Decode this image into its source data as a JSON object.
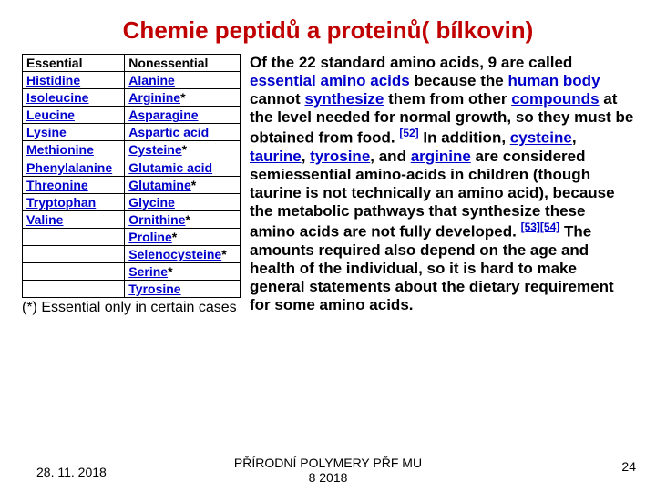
{
  "title": "Chemie peptidů a proteinů( bílkovin)",
  "table": {
    "headers": {
      "c1": "Essential",
      "c2": "Nonessential"
    },
    "rows": [
      {
        "c1": "Histidine",
        "c2": "Alanine",
        "c1_link": true,
        "c2_link": true,
        "c2_star": false
      },
      {
        "c1": "Isoleucine",
        "c2": "Arginine",
        "c1_link": true,
        "c2_link": true,
        "c2_star": true
      },
      {
        "c1": "Leucine",
        "c2": "Asparagine",
        "c1_link": true,
        "c2_link": true,
        "c2_star": false
      },
      {
        "c1": "Lysine",
        "c2": "Aspartic acid",
        "c1_link": true,
        "c2_link": true,
        "c2_star": false
      },
      {
        "c1": "Methionine",
        "c2": "Cysteine",
        "c1_link": true,
        "c2_link": true,
        "c2_star": true
      },
      {
        "c1": "Phenylalanine",
        "c2": "Glutamic acid",
        "c1_link": true,
        "c2_link": true,
        "c2_star": false
      },
      {
        "c1": "Threonine",
        "c2": "Glutamine",
        "c1_link": true,
        "c2_link": true,
        "c2_star": true
      },
      {
        "c1": "Tryptophan",
        "c2": "Glycine",
        "c1_link": true,
        "c2_link": true,
        "c2_star": false
      },
      {
        "c1": "Valine",
        "c2": "Ornithine",
        "c1_link": true,
        "c2_link": true,
        "c2_star": true
      },
      {
        "c1": "",
        "c2": "Proline",
        "c1_link": false,
        "c2_link": true,
        "c2_star": true
      },
      {
        "c1": "",
        "c2": "Selenocysteine",
        "c1_link": false,
        "c2_link": true,
        "c2_star": true
      },
      {
        "c1": "",
        "c2": "Serine",
        "c1_link": false,
        "c2_link": true,
        "c2_star": true
      },
      {
        "c1": "",
        "c2": "Tyrosine",
        "c1_link": false,
        "c2_link": true,
        "c2_star": false
      }
    ]
  },
  "footnote": "(*) Essential only in certain cases",
  "body": {
    "p1a": "Of the 22 standard amino acids, 9 are called ",
    "p1_link1": "essential amino acids",
    "p1b": " because the ",
    "p1_link2": "human body",
    "p1c": " cannot ",
    "p1_link3": "synthesize",
    "p1d": " them from other ",
    "p1_link4": "compounds",
    "p1e": " at the level needed for normal growth, so they must be obtained from food. ",
    "ref1": "[52]",
    "p1f": " In addition, ",
    "p1_link5": "cysteine",
    "comma1": ", ",
    "p1_link6": "taurine",
    "comma2": ", ",
    "p1_link7": "tyrosine",
    "comma3": ", and ",
    "p1_link8": "arginine",
    "p1g": " are considered semiessential amino-acids in children (though taurine is not technically an amino acid), because the metabolic pathways that synthesize these amino acids are not fully developed. ",
    "ref2": "[53]",
    "ref3": "[54]",
    "p1h": " The amounts required also depend on the age and health of the individual, so it is hard to make general statements about the dietary requirement for some amino acids."
  },
  "footer": {
    "date": "28. 11. 2018",
    "center_l1": "PŘÍRODNÍ POLYMERY PŘF MU",
    "center_l2": "8 2018",
    "page": "24"
  },
  "colors": {
    "title": "#c00000",
    "link": "#0000cc",
    "text": "#000000",
    "background": "#ffffff",
    "border": "#000000"
  }
}
